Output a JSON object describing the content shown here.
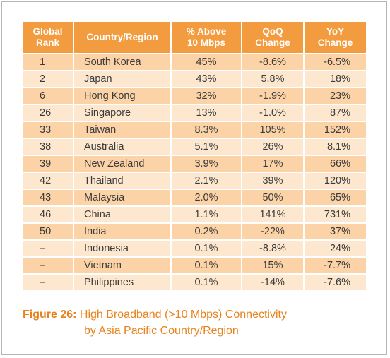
{
  "table": {
    "headers": {
      "rank": [
        "Global",
        "Rank"
      ],
      "country": [
        "Country/Region"
      ],
      "above": [
        "% Above",
        "10 Mbps"
      ],
      "qoq": [
        "QoQ",
        "Change"
      ],
      "yoy": [
        "YoY",
        "Change"
      ]
    },
    "rows": [
      {
        "rank": "1",
        "country": "South Korea",
        "above": "45%",
        "qoq": "-8.6%",
        "yoy": "-6.5%"
      },
      {
        "rank": "2",
        "country": "Japan",
        "above": "43%",
        "qoq": "5.8%",
        "yoy": "18%"
      },
      {
        "rank": "6",
        "country": "Hong Kong",
        "above": "32%",
        "qoq": "-1.9%",
        "yoy": "23%"
      },
      {
        "rank": "26",
        "country": "Singapore",
        "above": "13%",
        "qoq": "-1.0%",
        "yoy": "87%"
      },
      {
        "rank": "33",
        "country": "Taiwan",
        "above": "8.3%",
        "qoq": "105%",
        "yoy": "152%"
      },
      {
        "rank": "38",
        "country": "Australia",
        "above": "5.1%",
        "qoq": "26%",
        "yoy": "8.1%"
      },
      {
        "rank": "39",
        "country": "New Zealand",
        "above": "3.9%",
        "qoq": "17%",
        "yoy": "66%"
      },
      {
        "rank": "42",
        "country": "Thailand",
        "above": "2.1%",
        "qoq": "39%",
        "yoy": "120%"
      },
      {
        "rank": "43",
        "country": "Malaysia",
        "above": "2.0%",
        "qoq": "50%",
        "yoy": "65%"
      },
      {
        "rank": "46",
        "country": "China",
        "above": "1.1%",
        "qoq": "141%",
        "yoy": "731%"
      },
      {
        "rank": "50",
        "country": "India",
        "above": "0.2%",
        "qoq": "-22%",
        "yoy": "37%"
      },
      {
        "rank": "–",
        "country": "Indonesia",
        "above": "0.1%",
        "qoq": "-8.8%",
        "yoy": "24%"
      },
      {
        "rank": "–",
        "country": "Vietnam",
        "above": "0.1%",
        "qoq": "15%",
        "yoy": "-7.7%"
      },
      {
        "rank": "–",
        "country": "Philippines",
        "above": "0.1%",
        "qoq": "-14%",
        "yoy": "-7.6%"
      }
    ]
  },
  "caption": {
    "label": "Figure 26:",
    "line1": "High Broadband (>10 Mbps) Connectivity",
    "line2": "by Asia Pacific Country/Region"
  },
  "colors": {
    "header_bg": "#f39c3f",
    "row_dark": "#fbd3a6",
    "row_light": "#fde8cf",
    "caption": "#e8821e"
  }
}
